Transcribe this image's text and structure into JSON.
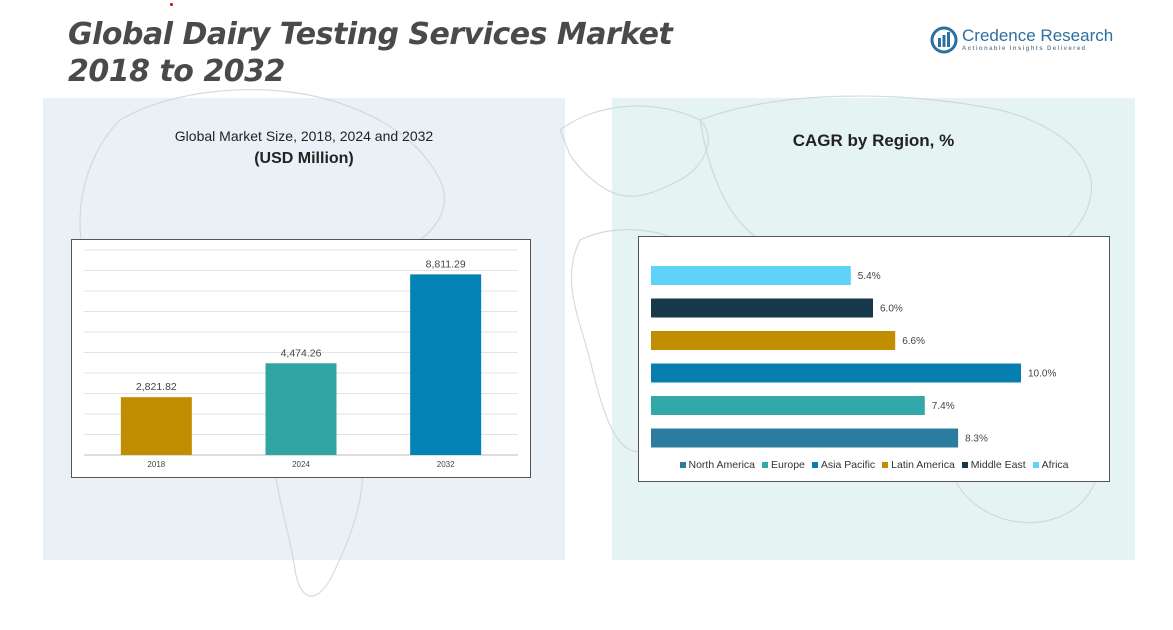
{
  "header": {
    "title_line1": "Global Dairy Testing Services Market",
    "title_line2": "2018 to 2032"
  },
  "logo": {
    "name": "Credence Research",
    "tagline": "Actionable Insights Delivered"
  },
  "left_panel": {
    "subtitle": "Global Market Size, 2018, 2024 and 2032",
    "unit": "(USD Million)"
  },
  "right_panel": {
    "title": "CAGR by Region, %"
  },
  "colors": {
    "panel_left": "#e9f1f6",
    "panel_right": "#e5f3f3"
  },
  "chart_data": [
    {
      "type": "bar",
      "title": "Global Market Size, 2018, 2024 and 2032",
      "ylabel": "(USD Million)",
      "categories": [
        "2018",
        "2024",
        "2032"
      ],
      "values": [
        2821.82,
        4474.26,
        8811.29
      ],
      "value_labels": [
        "2,821.82",
        "4,474.26",
        "8,811.29"
      ],
      "colors": [
        "#c08e00",
        "#31a4a4",
        "#0383b5"
      ],
      "ylim": [
        0,
        10000
      ],
      "grid": true,
      "legend": "none"
    },
    {
      "type": "bar",
      "orientation": "horizontal",
      "title": "CAGR by Region, %",
      "series": [
        {
          "name": "North America",
          "value": 8.3,
          "label": "8.3%",
          "color": "#2b7c9e"
        },
        {
          "name": "Europe",
          "value": 7.4,
          "label": "7.4%",
          "color": "#33a8a8"
        },
        {
          "name": "Asia Pacific",
          "value": 10.0,
          "label": "10.0%",
          "color": "#067fb0"
        },
        {
          "name": "Latin America",
          "value": 6.6,
          "label": "6.6%",
          "color": "#c08e00"
        },
        {
          "name": "Middle East",
          "value": 6.0,
          "label": "6.0%",
          "color": "#17394a"
        },
        {
          "name": "Africa",
          "value": 5.4,
          "label": "5.4%",
          "color": "#5ed2f8"
        }
      ],
      "order_top_to_bottom": [
        "Africa",
        "Middle East",
        "Latin America",
        "Asia Pacific",
        "Europe",
        "North America"
      ],
      "xlim": [
        0,
        12
      ],
      "grid": false,
      "legend": "bottom"
    }
  ]
}
